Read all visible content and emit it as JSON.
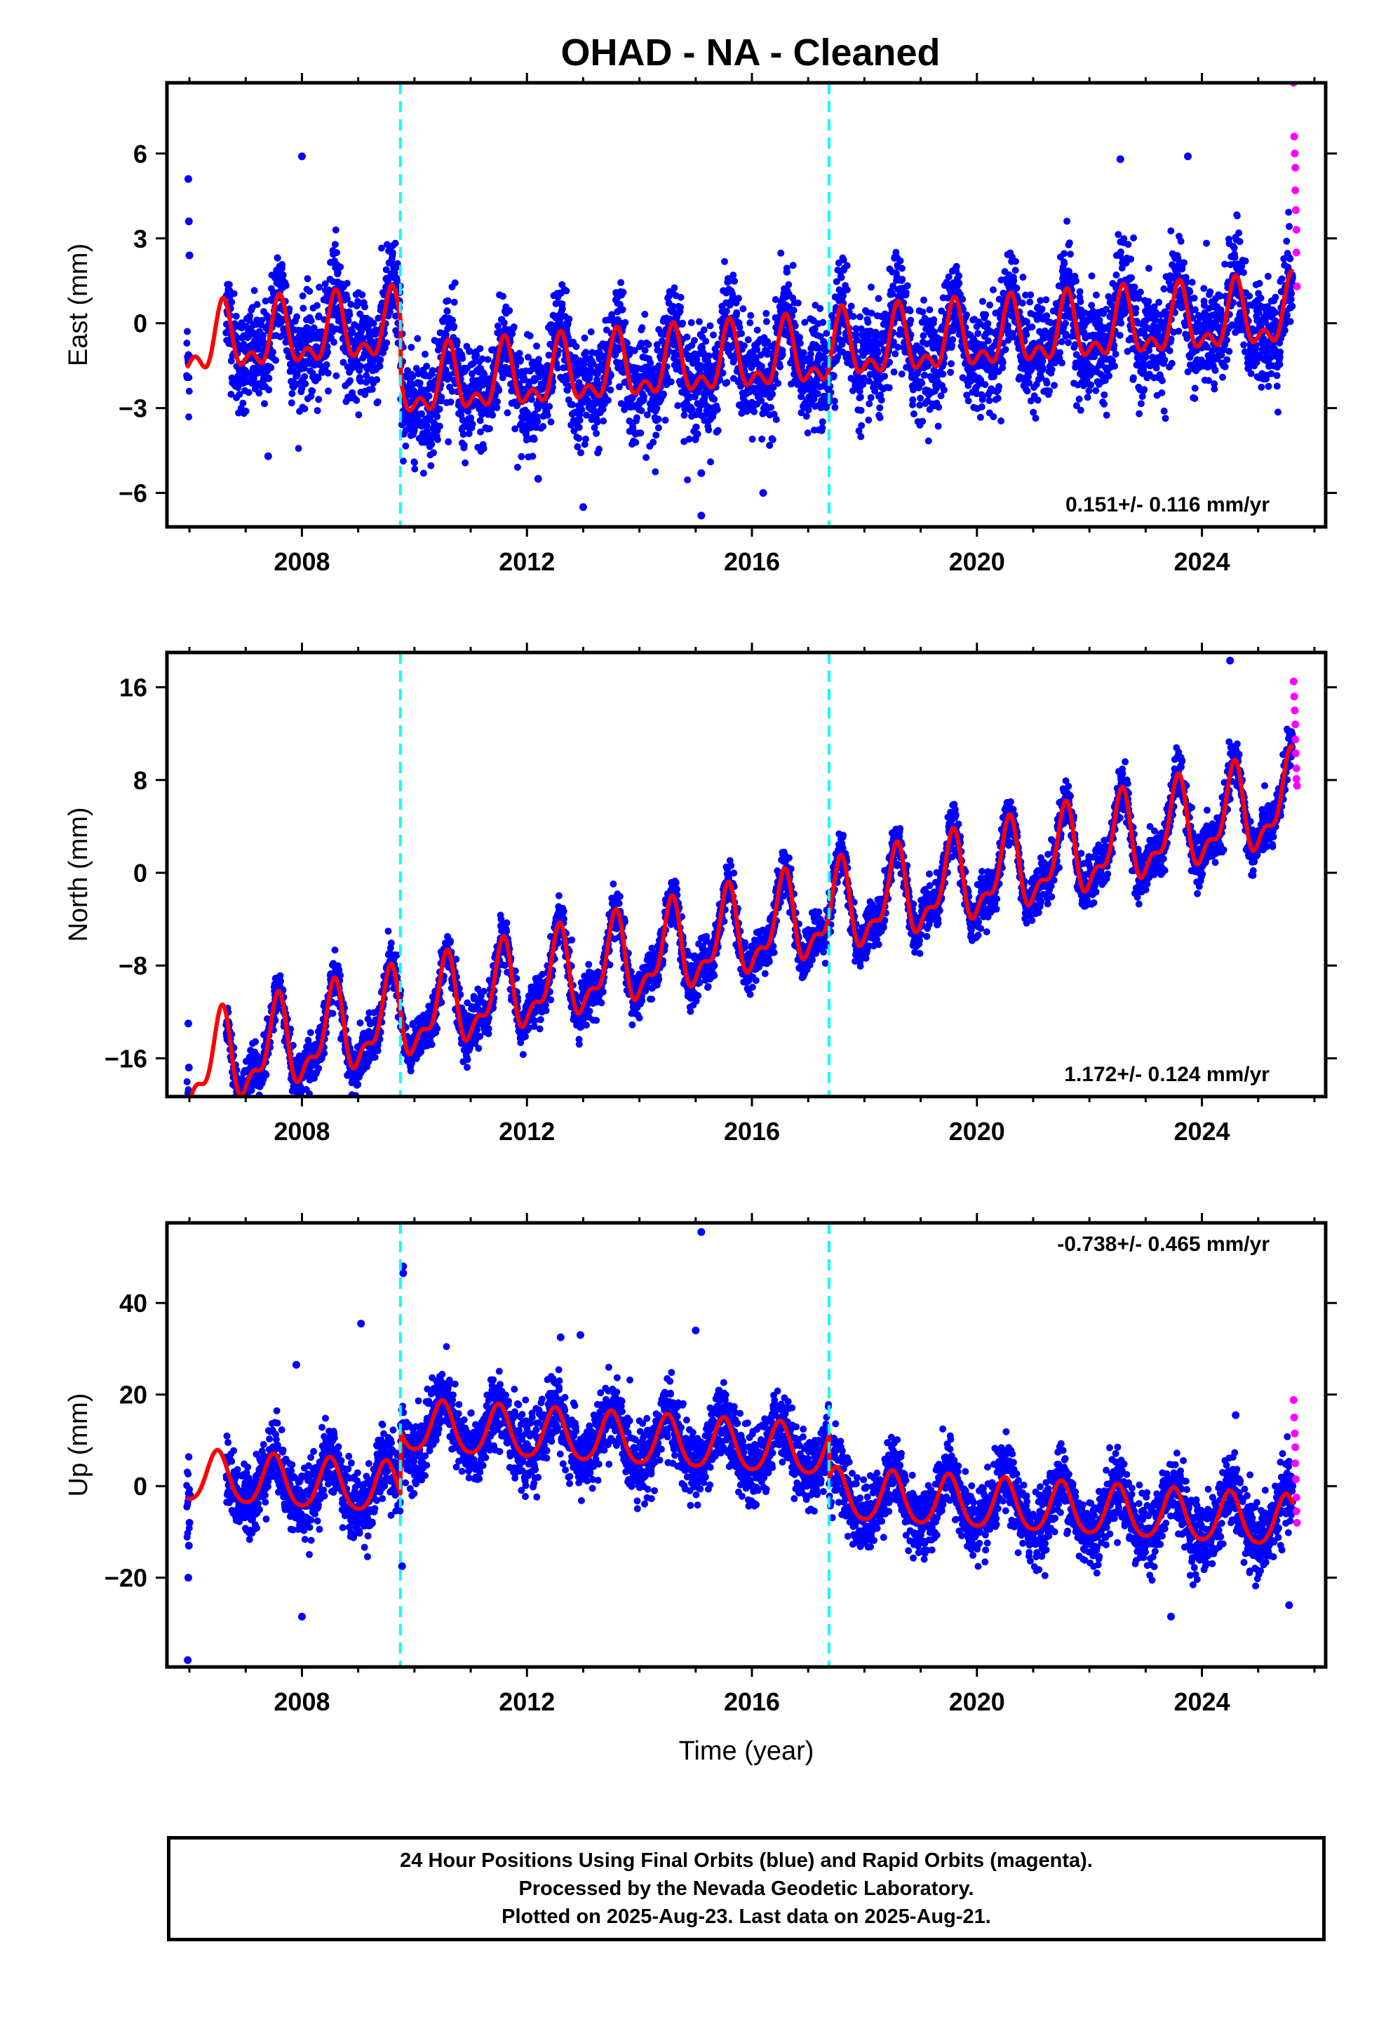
{
  "title": "OHAD  - NA - Cleaned",
  "footer": {
    "line1": "24 Hour Positions Using Final Orbits (blue) and Rapid Orbits (magenta).",
    "line2": "Processed by the Nevada Geodetic Laboratory.",
    "line3": "Plotted on 2025-Aug-23. Last data on 2025-Aug-21."
  },
  "colors": {
    "final_points": "#0000ff",
    "rapid_points": "#ff00ff",
    "model_fit": "#ff0000",
    "equipment_change": "#00ffff"
  },
  "chart_data": [
    {
      "type": "scatter",
      "component": "East",
      "ylabel": "East (mm)",
      "xlabel": "",
      "xlim": [
        2005.6,
        2026.2
      ],
      "ylim": [
        -7.2,
        8.5
      ],
      "xticks": [
        2008,
        2012,
        2016,
        2020,
        2024
      ],
      "yticks": [
        -6,
        -3,
        0,
        3,
        6
      ],
      "rate_label": "0.151+/- 0.116 mm/yr",
      "rate_label_position": "bottom-right",
      "vlines": [
        2009.75,
        2017.37
      ],
      "model": {
        "start": 2005.95,
        "end": 2025.62,
        "trend": 0.151,
        "offsets": [
          {
            "t": 2005.95,
            "v": -0.8
          },
          {
            "t": 2009.75,
            "v": -2.3
          },
          {
            "t": 2017.37,
            "v": -1.0
          }
        ],
        "annual_amp": 1.0,
        "annual_phase": 0.6,
        "semi_amp": 0.6,
        "semi_phase": 0.6
      },
      "scatter_sd": 0.9,
      "gap": [
        2006.0,
        2006.65
      ],
      "rapid_points": [
        [
          2025.63,
          8.5
        ],
        [
          2025.64,
          6.6
        ],
        [
          2025.65,
          6.0
        ],
        [
          2025.66,
          5.5
        ],
        [
          2025.66,
          4.7
        ],
        [
          2025.67,
          4.0
        ],
        [
          2025.68,
          3.3
        ],
        [
          2025.68,
          2.5
        ],
        [
          2025.69,
          1.3
        ]
      ],
      "outliers": [
        [
          2005.98,
          5.1
        ],
        [
          2005.99,
          3.6
        ],
        [
          2006.0,
          2.4
        ],
        [
          2007.4,
          -4.7
        ],
        [
          2008.0,
          5.9
        ],
        [
          2012.2,
          -5.5
        ],
        [
          2013.0,
          -6.5
        ],
        [
          2015.1,
          -6.8
        ],
        [
          2015.1,
          -5.3
        ],
        [
          2016.2,
          -6.0
        ],
        [
          2022.55,
          5.8
        ],
        [
          2023.75,
          5.9
        ]
      ]
    },
    {
      "type": "scatter",
      "component": "North",
      "ylabel": "North (mm)",
      "xlabel": "",
      "xlim": [
        2005.6,
        2026.2
      ],
      "ylim": [
        -19.3,
        19.0
      ],
      "xticks": [
        2008,
        2012,
        2016,
        2020,
        2024
      ],
      "yticks": [
        -16,
        -8,
        0,
        8,
        16
      ],
      "rate_label": "1.172+/- 0.124 mm/yr",
      "rate_label_position": "bottom-right",
      "vlines": [
        2009.75,
        2017.37
      ],
      "model": {
        "start": 2005.95,
        "end": 2025.62,
        "trend": 1.172,
        "offsets": [
          {
            "t": 2005.95,
            "v": -17.0
          },
          {
            "t": 2009.75,
            "v": -12.5
          },
          {
            "t": 2017.37,
            "v": -3.6
          }
        ],
        "annual_amp": 3.4,
        "annual_phase": 0.55,
        "semi_amp": 1.6,
        "semi_phase": 0.6
      },
      "scatter_sd": 1.0,
      "gap": [
        2006.0,
        2006.65
      ],
      "rapid_points": [
        [
          2025.63,
          16.5
        ],
        [
          2025.64,
          15.2
        ],
        [
          2025.65,
          14.0
        ],
        [
          2025.66,
          12.8
        ],
        [
          2025.66,
          11.5
        ],
        [
          2025.67,
          10.3
        ],
        [
          2025.68,
          9.0
        ],
        [
          2025.68,
          8.1
        ],
        [
          2025.69,
          7.5
        ]
      ],
      "outliers": [
        [
          2005.98,
          -13.0
        ],
        [
          2005.99,
          -16.8
        ],
        [
          2007.9,
          -18.5
        ],
        [
          2007.9,
          -16.5
        ],
        [
          2008.7,
          -14.3
        ],
        [
          2010.85,
          -13.8
        ],
        [
          2018.8,
          -2.6
        ],
        [
          2024.5,
          18.3
        ]
      ]
    },
    {
      "type": "scatter",
      "component": "Up",
      "ylabel": "Up (mm)",
      "xlabel": "Time (year)",
      "xlim": [
        2005.6,
        2026.2
      ],
      "ylim": [
        -39.5,
        57.5
      ],
      "xticks": [
        2008,
        2012,
        2016,
        2020,
        2024
      ],
      "yticks": [
        -20,
        0,
        20,
        40
      ],
      "rate_label": "-0.738+/- 0.465 mm/yr",
      "rate_label_position": "top-right",
      "vlines": [
        2009.75,
        2017.37
      ],
      "model": {
        "start": 2005.95,
        "end": 2025.62,
        "trend": -0.738,
        "offsets": [
          {
            "t": 2005.95,
            "v": 2.0
          },
          {
            "t": 2009.75,
            "v": 13.0
          },
          {
            "t": 2017.37,
            "v": -2.0
          }
        ],
        "annual_amp": 5.5,
        "annual_phase": 0.5,
        "semi_amp": 0.8,
        "semi_phase": 0.5
      },
      "scatter_sd": 3.8,
      "gap": [
        2006.0,
        2006.65
      ],
      "rapid_points": [
        [
          2025.63,
          18.8
        ],
        [
          2025.64,
          15.0
        ],
        [
          2025.65,
          11.5
        ],
        [
          2025.66,
          8.5
        ],
        [
          2025.66,
          5.0
        ],
        [
          2025.67,
          1.5
        ],
        [
          2025.68,
          -2.5
        ],
        [
          2025.68,
          -5.5
        ],
        [
          2025.69,
          -8.0
        ]
      ],
      "outliers": [
        [
          2005.97,
          -38.0
        ],
        [
          2005.98,
          -20.0
        ],
        [
          2005.99,
          -13.0
        ],
        [
          2006.0,
          -8.0
        ],
        [
          2006.01,
          -2.0
        ],
        [
          2007.9,
          26.5
        ],
        [
          2008.0,
          -28.5
        ],
        [
          2009.05,
          35.5
        ],
        [
          2009.8,
          46.5
        ],
        [
          2009.8,
          48.0
        ],
        [
          2009.78,
          -17.5
        ],
        [
          2012.6,
          32.5
        ],
        [
          2012.95,
          33.0
        ],
        [
          2015.0,
          34.0
        ],
        [
          2015.1,
          55.5
        ],
        [
          2023.45,
          -28.5
        ],
        [
          2024.6,
          15.5
        ],
        [
          2025.55,
          -26.0
        ]
      ]
    }
  ]
}
